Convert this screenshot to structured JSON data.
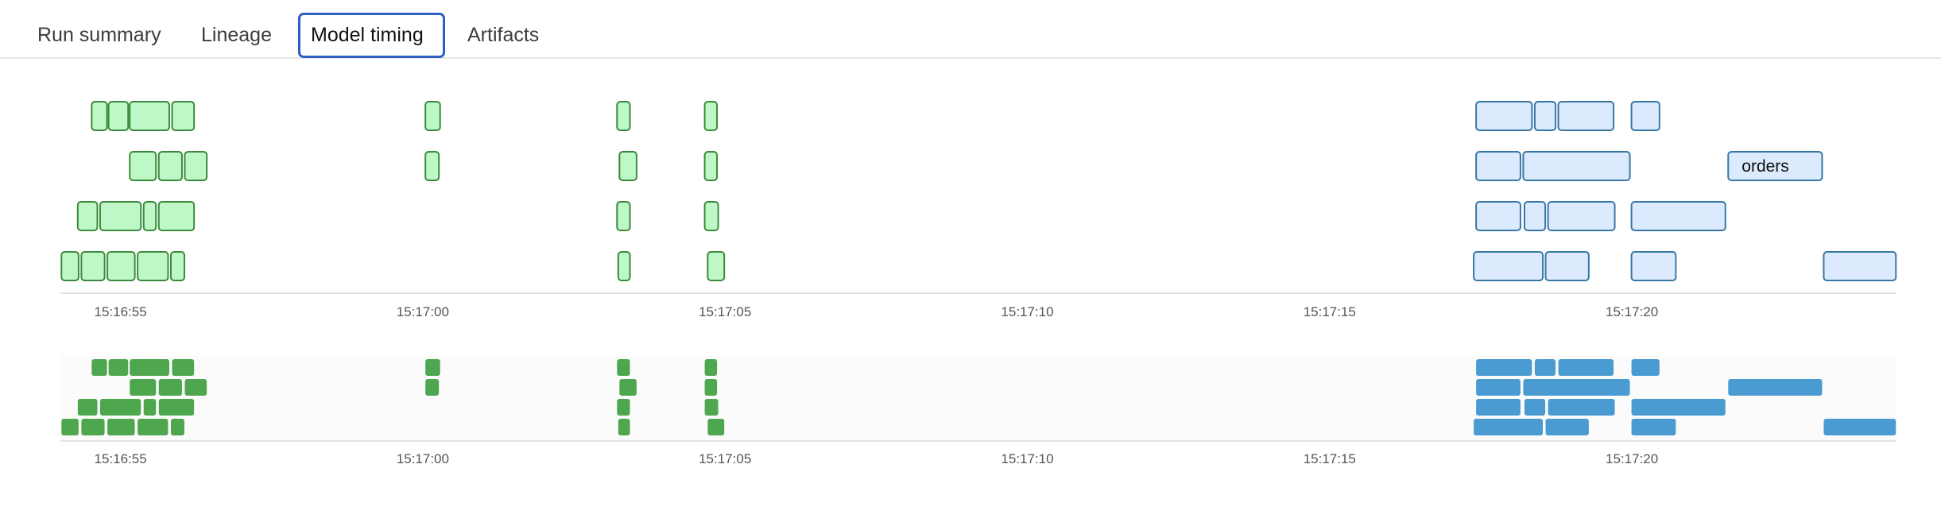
{
  "tabs": [
    {
      "label": "Run summary",
      "active": false
    },
    {
      "label": "Lineage",
      "active": false
    },
    {
      "label": "Model timing",
      "active": true
    },
    {
      "label": "Artifacts",
      "active": false
    }
  ],
  "colors": {
    "accent": "#2d5fc4",
    "early_fill": "#bdf8c6",
    "early_stroke": "#3d8a3d",
    "early_solid": "#4ea64e",
    "late_fill": "#dbeafc",
    "late_stroke": "#3a78a4",
    "late_solid": "#4a9bd1"
  },
  "chart_data": {
    "type": "gantt",
    "x_ticks": [
      "15:16:55",
      "15:17:00",
      "15:17:05",
      "15:17:10",
      "15:17:15",
      "15:17:20"
    ],
    "rows": [
      {
        "early": [
          [
            "15:16:54.51",
            "15:16:54.79"
          ],
          [
            "15:16:54.79",
            "15:16:55.14"
          ],
          [
            "15:16:55.14",
            "15:16:55.82"
          ],
          [
            "15:16:55.84",
            "15:16:56.23"
          ],
          [
            "15:17:00.03",
            "15:17:00.30"
          ],
          [
            "15:17:03.20",
            "15:17:03.44"
          ],
          [
            "15:17:04.65",
            "15:17:04.88"
          ]
        ],
        "late": [
          [
            "15:17:17.41",
            "15:17:18.36"
          ],
          [
            "15:17:18.38",
            "15:17:18.75"
          ],
          [
            "15:17:18.77",
            "15:17:19.71"
          ],
          [
            "15:17:19.98",
            "15:17:20.47"
          ]
        ]
      },
      {
        "early": [
          [
            "15:16:55.14",
            "15:16:55.60"
          ],
          [
            "15:16:55.62",
            "15:16:56.03"
          ],
          [
            "15:16:56.05",
            "15:16:56.44"
          ],
          [
            "15:17:00.03",
            "15:17:00.28"
          ],
          [
            "15:17:03.24",
            "15:17:03.55"
          ],
          [
            "15:17:04.65",
            "15:17:04.88"
          ]
        ],
        "late": [
          [
            "15:17:17.41",
            "15:17:18.17"
          ],
          [
            "15:17:18.19",
            "15:17:19.98"
          ],
          [
            "15:17:21.58",
            "15:17:23.16",
            "orders"
          ]
        ]
      },
      {
        "early": [
          [
            "15:16:54.28",
            "15:16:54.63"
          ],
          [
            "15:16:54.65",
            "15:16:55.35"
          ],
          [
            "15:16:55.37",
            "15:16:55.60"
          ],
          [
            "15:16:55.62",
            "15:16:56.23"
          ],
          [
            "15:17:03.20",
            "15:17:03.44"
          ],
          [
            "15:17:04.65",
            "15:17:04.90"
          ]
        ],
        "late": [
          [
            "15:17:17.41",
            "15:17:18.17"
          ],
          [
            "15:17:18.21",
            "15:17:18.58"
          ],
          [
            "15:17:18.60",
            "15:17:19.73"
          ],
          [
            "15:17:19.98",
            "15:17:21.56"
          ]
        ]
      },
      {
        "early": [
          [
            "15:16:54.01",
            "15:16:54.32"
          ],
          [
            "15:16:54.34",
            "15:16:54.75"
          ],
          [
            "15:16:54.77",
            "15:16:55.25"
          ],
          [
            "15:16:55.27",
            "15:16:55.80"
          ],
          [
            "15:16:55.82",
            "15:16:56.07"
          ],
          [
            "15:17:03.22",
            "15:17:03.44"
          ],
          [
            "15:17:04.70",
            "15:17:05.00"
          ]
        ],
        "late": [
          [
            "15:17:17.37",
            "15:17:18.54"
          ],
          [
            "15:17:18.56",
            "15:17:19.30"
          ],
          [
            "15:17:19.98",
            "15:17:20.74"
          ],
          [
            "15:17:23.16",
            "15:17:24.38"
          ]
        ]
      }
    ]
  }
}
